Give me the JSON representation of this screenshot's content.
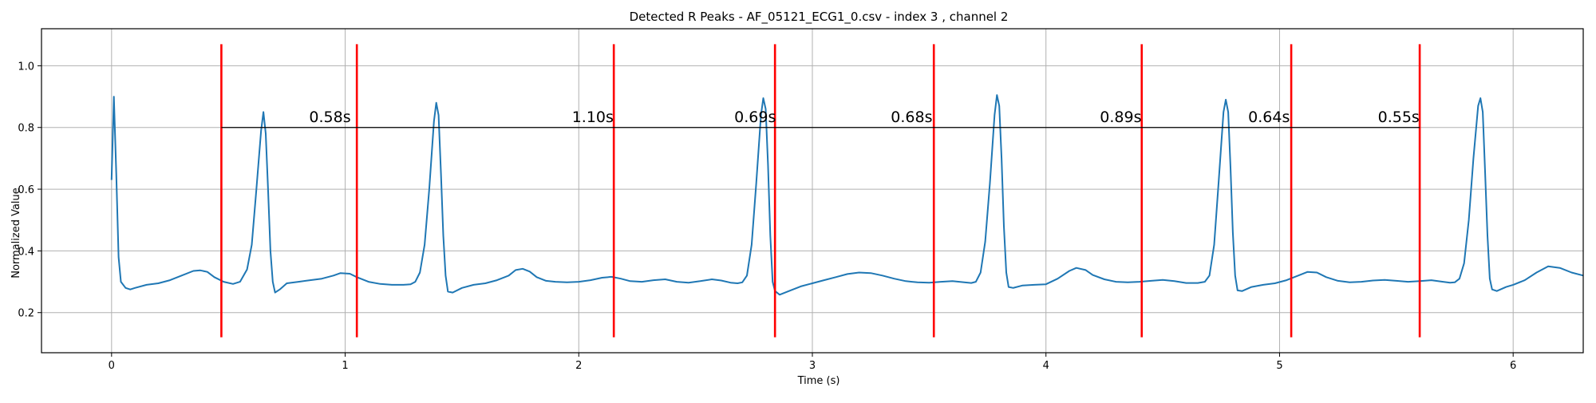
{
  "chart_data": {
    "type": "line",
    "title": "Detected R Peaks - AF_05121_ECG1_0.csv - index 3 , channel 2",
    "xlabel": "Time (s)",
    "ylabel": "Normalized Value",
    "xlim": [
      -0.3,
      6.3
    ],
    "ylim": [
      0.07,
      1.12
    ],
    "x_ticks": [
      0,
      1,
      2,
      3,
      4,
      5,
      6
    ],
    "y_ticks": [
      0.2,
      0.4,
      0.6,
      0.8,
      1.0
    ],
    "x_tick_labels": [
      "0",
      "1",
      "2",
      "3",
      "4",
      "5",
      "6"
    ],
    "y_tick_labels": [
      "0.2",
      "0.4",
      "0.6",
      "0.8",
      "1.0"
    ],
    "grid": true,
    "colors": {
      "signal": "#1f77b4",
      "peak_marker": "#ff0000",
      "interval_line": "#000000",
      "grid": "#b0b0b0"
    },
    "signal": {
      "points": [
        [
          0.0,
          0.63
        ],
        [
          0.01,
          0.9
        ],
        [
          0.02,
          0.65
        ],
        [
          0.03,
          0.38
        ],
        [
          0.04,
          0.3
        ],
        [
          0.06,
          0.28
        ],
        [
          0.08,
          0.275
        ],
        [
          0.1,
          0.28
        ],
        [
          0.15,
          0.29
        ],
        [
          0.2,
          0.295
        ],
        [
          0.25,
          0.305
        ],
        [
          0.3,
          0.32
        ],
        [
          0.35,
          0.335
        ],
        [
          0.38,
          0.337
        ],
        [
          0.41,
          0.332
        ],
        [
          0.44,
          0.315
        ],
        [
          0.48,
          0.3
        ],
        [
          0.52,
          0.293
        ],
        [
          0.55,
          0.3
        ],
        [
          0.58,
          0.34
        ],
        [
          0.6,
          0.42
        ],
        [
          0.62,
          0.6
        ],
        [
          0.64,
          0.79
        ],
        [
          0.65,
          0.85
        ],
        [
          0.66,
          0.78
        ],
        [
          0.67,
          0.6
        ],
        [
          0.68,
          0.4
        ],
        [
          0.69,
          0.3
        ],
        [
          0.7,
          0.265
        ],
        [
          0.72,
          0.275
        ],
        [
          0.75,
          0.295
        ],
        [
          0.8,
          0.3
        ],
        [
          0.85,
          0.305
        ],
        [
          0.9,
          0.31
        ],
        [
          0.95,
          0.32
        ],
        [
          0.98,
          0.328
        ],
        [
          1.02,
          0.326
        ],
        [
          1.05,
          0.315
        ],
        [
          1.1,
          0.3
        ],
        [
          1.15,
          0.293
        ],
        [
          1.2,
          0.29
        ],
        [
          1.25,
          0.29
        ],
        [
          1.28,
          0.292
        ],
        [
          1.3,
          0.3
        ],
        [
          1.32,
          0.33
        ],
        [
          1.34,
          0.42
        ],
        [
          1.36,
          0.6
        ],
        [
          1.38,
          0.82
        ],
        [
          1.39,
          0.88
        ],
        [
          1.4,
          0.84
        ],
        [
          1.41,
          0.65
        ],
        [
          1.42,
          0.45
        ],
        [
          1.43,
          0.32
        ],
        [
          1.44,
          0.268
        ],
        [
          1.46,
          0.265
        ],
        [
          1.5,
          0.28
        ],
        [
          1.55,
          0.29
        ],
        [
          1.6,
          0.295
        ],
        [
          1.65,
          0.305
        ],
        [
          1.7,
          0.32
        ],
        [
          1.73,
          0.338
        ],
        [
          1.76,
          0.342
        ],
        [
          1.79,
          0.333
        ],
        [
          1.82,
          0.315
        ],
        [
          1.86,
          0.303
        ],
        [
          1.9,
          0.3
        ],
        [
          1.95,
          0.298
        ],
        [
          2.0,
          0.3
        ],
        [
          2.05,
          0.305
        ],
        [
          2.1,
          0.313
        ],
        [
          2.14,
          0.316
        ],
        [
          2.18,
          0.31
        ],
        [
          2.22,
          0.302
        ],
        [
          2.27,
          0.3
        ],
        [
          2.32,
          0.305
        ],
        [
          2.37,
          0.308
        ],
        [
          2.42,
          0.3
        ],
        [
          2.47,
          0.297
        ],
        [
          2.52,
          0.302
        ],
        [
          2.57,
          0.308
        ],
        [
          2.61,
          0.304
        ],
        [
          2.65,
          0.297
        ],
        [
          2.68,
          0.295
        ],
        [
          2.7,
          0.298
        ],
        [
          2.72,
          0.32
        ],
        [
          2.74,
          0.42
        ],
        [
          2.76,
          0.62
        ],
        [
          2.78,
          0.84
        ],
        [
          2.79,
          0.895
        ],
        [
          2.8,
          0.86
        ],
        [
          2.81,
          0.68
        ],
        [
          2.82,
          0.45
        ],
        [
          2.83,
          0.3
        ],
        [
          2.84,
          0.27
        ],
        [
          2.86,
          0.258
        ],
        [
          2.9,
          0.27
        ],
        [
          2.95,
          0.285
        ],
        [
          3.0,
          0.295
        ],
        [
          3.05,
          0.305
        ],
        [
          3.1,
          0.315
        ],
        [
          3.15,
          0.325
        ],
        [
          3.2,
          0.33
        ],
        [
          3.25,
          0.328
        ],
        [
          3.3,
          0.32
        ],
        [
          3.35,
          0.31
        ],
        [
          3.4,
          0.302
        ],
        [
          3.45,
          0.298
        ],
        [
          3.5,
          0.297
        ],
        [
          3.55,
          0.3
        ],
        [
          3.6,
          0.302
        ],
        [
          3.65,
          0.298
        ],
        [
          3.68,
          0.296
        ],
        [
          3.7,
          0.3
        ],
        [
          3.72,
          0.33
        ],
        [
          3.74,
          0.43
        ],
        [
          3.76,
          0.62
        ],
        [
          3.78,
          0.84
        ],
        [
          3.79,
          0.905
        ],
        [
          3.8,
          0.87
        ],
        [
          3.81,
          0.7
        ],
        [
          3.82,
          0.48
        ],
        [
          3.83,
          0.33
        ],
        [
          3.84,
          0.283
        ],
        [
          3.86,
          0.28
        ],
        [
          3.9,
          0.288
        ],
        [
          3.95,
          0.29
        ],
        [
          4.0,
          0.292
        ],
        [
          4.05,
          0.31
        ],
        [
          4.1,
          0.335
        ],
        [
          4.13,
          0.345
        ],
        [
          4.17,
          0.338
        ],
        [
          4.2,
          0.322
        ],
        [
          4.25,
          0.308
        ],
        [
          4.3,
          0.3
        ],
        [
          4.35,
          0.298
        ],
        [
          4.4,
          0.3
        ],
        [
          4.45,
          0.303
        ],
        [
          4.5,
          0.306
        ],
        [
          4.55,
          0.302
        ],
        [
          4.6,
          0.296
        ],
        [
          4.65,
          0.296
        ],
        [
          4.68,
          0.3
        ],
        [
          4.7,
          0.32
        ],
        [
          4.72,
          0.42
        ],
        [
          4.74,
          0.63
        ],
        [
          4.76,
          0.85
        ],
        [
          4.77,
          0.89
        ],
        [
          4.78,
          0.85
        ],
        [
          4.79,
          0.67
        ],
        [
          4.8,
          0.46
        ],
        [
          4.81,
          0.32
        ],
        [
          4.82,
          0.272
        ],
        [
          4.84,
          0.27
        ],
        [
          4.88,
          0.283
        ],
        [
          4.93,
          0.29
        ],
        [
          4.98,
          0.295
        ],
        [
          5.03,
          0.305
        ],
        [
          5.08,
          0.32
        ],
        [
          5.12,
          0.332
        ],
        [
          5.16,
          0.33
        ],
        [
          5.2,
          0.315
        ],
        [
          5.25,
          0.303
        ],
        [
          5.3,
          0.298
        ],
        [
          5.35,
          0.3
        ],
        [
          5.4,
          0.304
        ],
        [
          5.45,
          0.306
        ],
        [
          5.5,
          0.303
        ],
        [
          5.55,
          0.3
        ],
        [
          5.6,
          0.302
        ],
        [
          5.65,
          0.305
        ],
        [
          5.7,
          0.3
        ],
        [
          5.73,
          0.297
        ],
        [
          5.75,
          0.298
        ],
        [
          5.77,
          0.31
        ],
        [
          5.79,
          0.36
        ],
        [
          5.81,
          0.5
        ],
        [
          5.83,
          0.7
        ],
        [
          5.85,
          0.87
        ],
        [
          5.86,
          0.895
        ],
        [
          5.87,
          0.85
        ],
        [
          5.88,
          0.65
        ],
        [
          5.89,
          0.45
        ],
        [
          5.9,
          0.31
        ],
        [
          5.91,
          0.275
        ],
        [
          5.93,
          0.27
        ],
        [
          5.97,
          0.283
        ],
        [
          6.0,
          0.29
        ],
        [
          6.05,
          0.305
        ],
        [
          6.1,
          0.33
        ],
        [
          6.15,
          0.35
        ],
        [
          6.2,
          0.345
        ],
        [
          6.25,
          0.33
        ],
        [
          6.3,
          0.32
        ]
      ]
    },
    "r_peaks": [
      0.47,
      1.05,
      2.15,
      2.84,
      3.52,
      4.41,
      5.05,
      5.6
    ],
    "peak_marker_range": [
      0.12,
      1.07
    ],
    "interval_line_y": 0.8,
    "interval_label_y": 0.835,
    "intervals": [
      {
        "x": 0.935,
        "label": "0.58s"
      },
      {
        "x": 2.06,
        "label": "1.10s"
      },
      {
        "x": 2.755,
        "label": "0.69s"
      },
      {
        "x": 3.425,
        "label": "0.68s"
      },
      {
        "x": 4.32,
        "label": "0.89s"
      },
      {
        "x": 4.955,
        "label": "0.64s"
      },
      {
        "x": 5.51,
        "label": "0.55s"
      }
    ]
  }
}
